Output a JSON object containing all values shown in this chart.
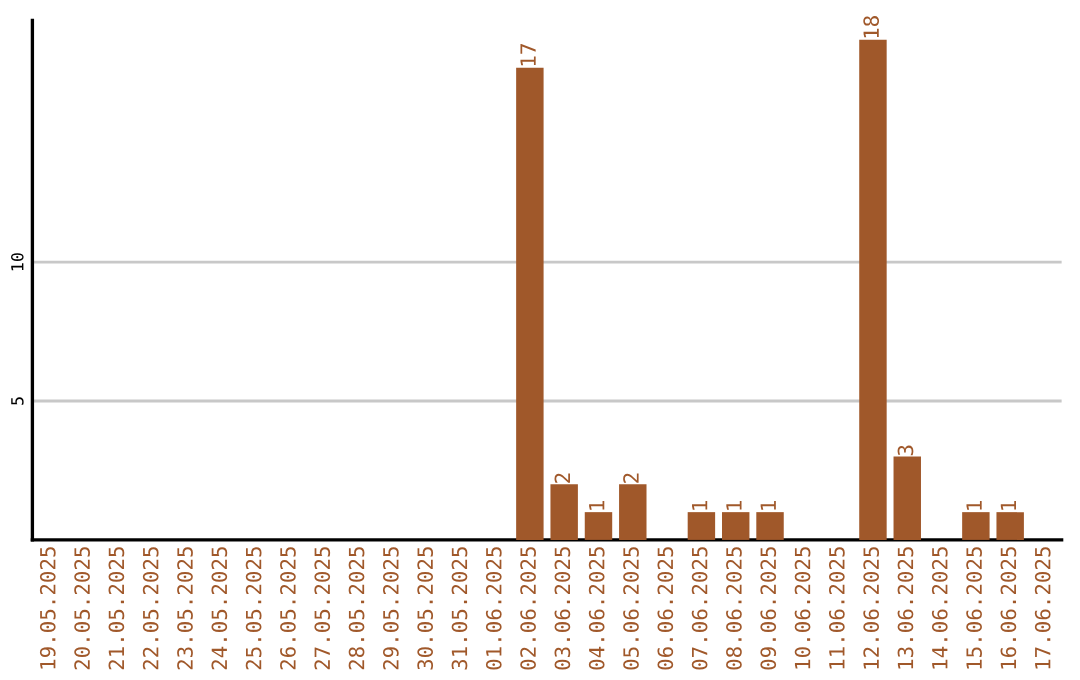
{
  "chart_data": {
    "type": "bar",
    "categories": [
      "19.05.2025",
      "20.05.2025",
      "21.05.2025",
      "22.05.2025",
      "23.05.2025",
      "24.05.2025",
      "25.05.2025",
      "26.05.2025",
      "27.05.2025",
      "28.05.2025",
      "29.05.2025",
      "30.05.2025",
      "31.05.2025",
      "01.06.2025",
      "02.06.2025",
      "03.06.2025",
      "04.06.2025",
      "05.06.2025",
      "06.06.2025",
      "07.06.2025",
      "08.06.2025",
      "09.06.2025",
      "10.06.2025",
      "11.06.2025",
      "12.06.2025",
      "13.06.2025",
      "14.06.2025",
      "15.06.2025",
      "16.06.2025",
      "17.06.2025"
    ],
    "values": [
      0,
      0,
      0,
      0,
      0,
      0,
      0,
      0,
      0,
      0,
      0,
      0,
      0,
      0,
      17,
      2,
      1,
      2,
      0,
      1,
      1,
      1,
      0,
      0,
      18,
      3,
      0,
      1,
      1,
      0
    ],
    "value_labels": [
      null,
      null,
      null,
      null,
      null,
      null,
      null,
      null,
      null,
      null,
      null,
      null,
      null,
      null,
      "17",
      "2",
      "1",
      "2",
      null,
      "1",
      "1",
      "1",
      null,
      null,
      "18",
      "3",
      null,
      "1",
      "1",
      null
    ],
    "color": "#a0582a",
    "ylim": [
      0,
      18.7
    ],
    "yticks": [
      5,
      10
    ],
    "grid": "y"
  }
}
